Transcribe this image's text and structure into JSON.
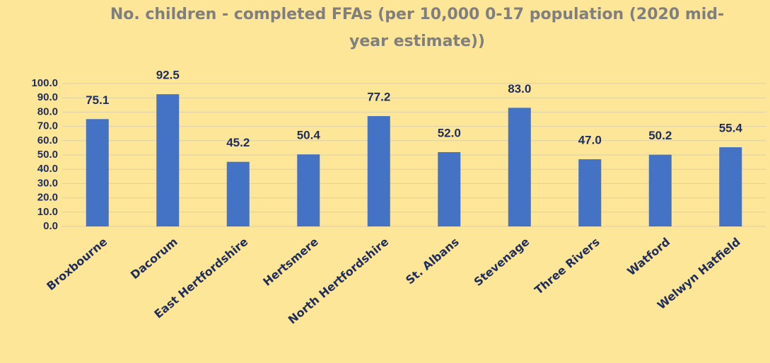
{
  "chart_data": {
    "type": "bar",
    "title": "No. children - completed FFAs (per 10,000 0-17 population (2020 mid-year estimate))",
    "categories": [
      "Broxbourne",
      "Dacorum",
      "East Hertfordshire",
      "Hertsmere",
      "North Hertfordshire",
      "St. Albans",
      "Stevenage",
      "Three Rivers",
      "Watford",
      "Welwyn Hatfield"
    ],
    "values": [
      75.1,
      92.5,
      45.2,
      50.4,
      77.2,
      52.0,
      83.0,
      47.0,
      50.2,
      55.4
    ],
    "value_labels": [
      "75.1",
      "92.5",
      "45.2",
      "50.4",
      "77.2",
      "52.0",
      "83.0",
      "47.0",
      "50.2",
      "55.4"
    ],
    "color": "#4472c4",
    "ylim": [
      0,
      100
    ],
    "yticks": [
      {
        "value": 0,
        "label": "0.0"
      },
      {
        "value": 10,
        "label": "10.0"
      },
      {
        "value": 20,
        "label": "20.0"
      },
      {
        "value": 30,
        "label": "30.0"
      },
      {
        "value": 40,
        "label": "40.0"
      },
      {
        "value": 50,
        "label": "50.0"
      },
      {
        "value": 60,
        "label": "60.0"
      },
      {
        "value": 70,
        "label": "70.0"
      },
      {
        "value": 80,
        "label": "80.0"
      },
      {
        "value": 90,
        "label": "90.0"
      },
      {
        "value": 100,
        "label": "100.0"
      }
    ],
    "grid": true
  }
}
